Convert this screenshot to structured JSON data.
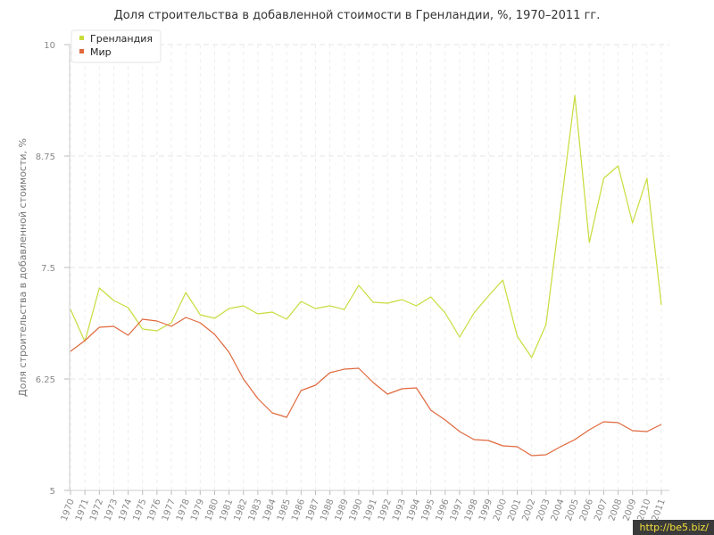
{
  "chart_data": {
    "type": "line",
    "title": "Доля строительства в добавленной стоимости в Гренландии, %, 1970–2011 гг.",
    "xlabel": "",
    "ylabel": "Доля строительства в добавленной стоимости, %",
    "ylim": [
      5,
      10
    ],
    "yticks": [
      "5",
      "6.25",
      "7.5",
      "8.75",
      "10"
    ],
    "grid": true,
    "legend_position": "top-left",
    "x": [
      "1970",
      "1971",
      "1972",
      "1973",
      "1974",
      "1975",
      "1976",
      "1977",
      "1978",
      "1979",
      "1980",
      "1981",
      "1982",
      "1983",
      "1984",
      "1985",
      "1986",
      "1987",
      "1988",
      "1989",
      "1990",
      "1991",
      "1992",
      "1993",
      "1994",
      "1995",
      "1996",
      "1997",
      "1998",
      "1999",
      "2000",
      "2001",
      "2002",
      "2003",
      "2004",
      "2005",
      "2006",
      "2007",
      "2008",
      "2009",
      "2010",
      "2011"
    ],
    "series": [
      {
        "name": "Гренландия",
        "color": "#c8dc3c",
        "values": [
          7.03,
          6.67,
          7.27,
          7.13,
          7.05,
          6.81,
          6.79,
          6.88,
          7.22,
          6.97,
          6.93,
          7.04,
          7.07,
          6.98,
          7.0,
          6.92,
          7.12,
          7.04,
          7.07,
          7.03,
          7.3,
          7.11,
          7.1,
          7.14,
          7.07,
          7.17,
          6.99,
          6.72,
          6.99,
          7.18,
          7.36,
          6.73,
          6.49,
          6.86,
          8.15,
          9.43,
          7.78,
          8.5,
          8.64,
          8.0,
          8.5,
          7.08
        ]
      },
      {
        "name": "Мир",
        "color": "#e0683c",
        "values": [
          6.56,
          6.68,
          6.83,
          6.84,
          6.74,
          6.92,
          6.9,
          6.84,
          6.94,
          6.88,
          6.75,
          6.55,
          6.25,
          6.03,
          5.87,
          5.82,
          6.12,
          6.18,
          6.32,
          6.36,
          6.37,
          6.21,
          6.08,
          6.14,
          6.15,
          5.9,
          5.79,
          5.66,
          5.57,
          5.56,
          5.5,
          5.49,
          5.39,
          5.4,
          5.49,
          5.57,
          5.68,
          5.77,
          5.76,
          5.67,
          5.66,
          5.74
        ]
      }
    ]
  },
  "watermark": "http://be5.biz/"
}
